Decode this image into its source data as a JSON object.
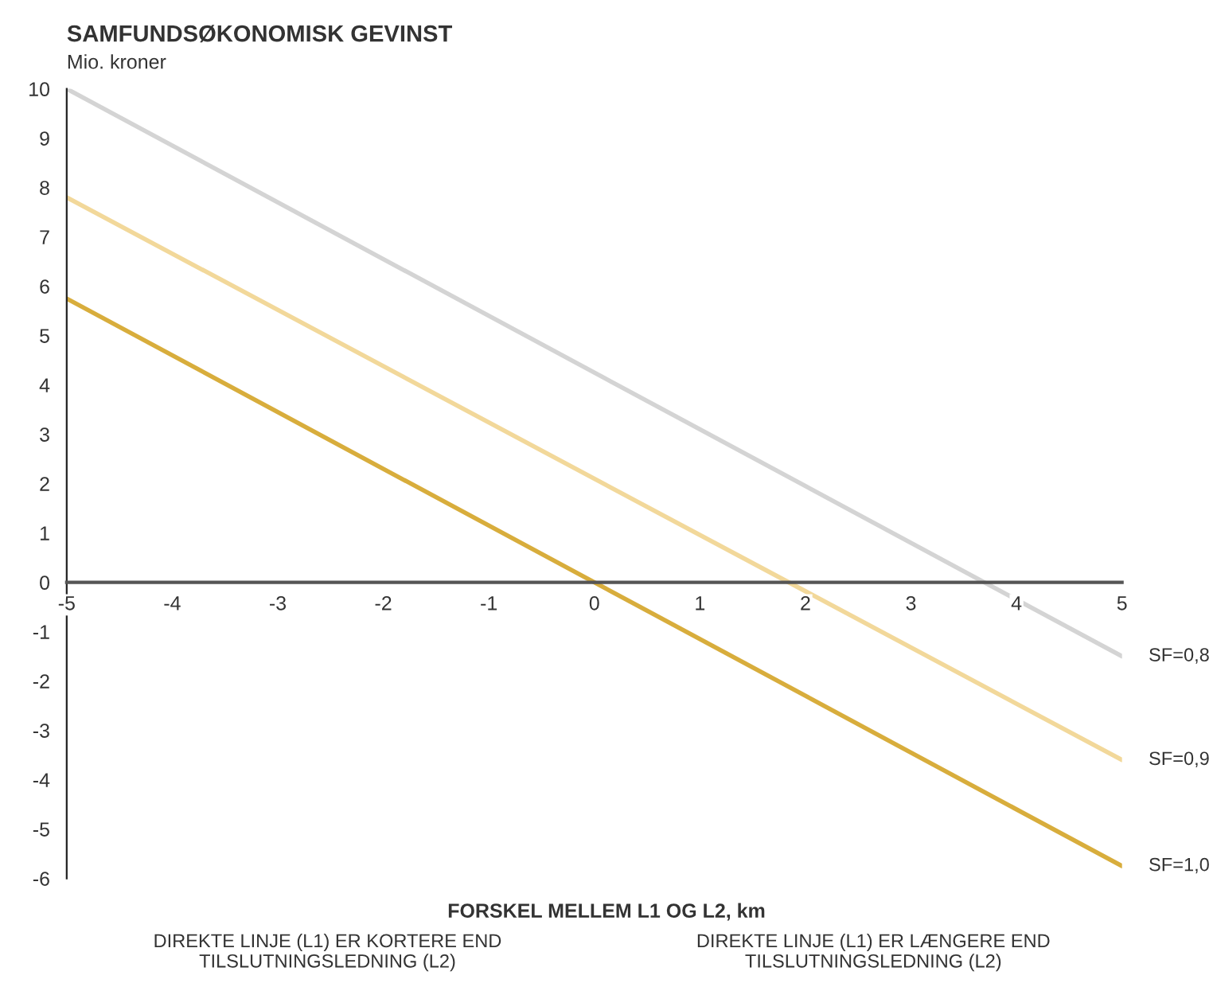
{
  "chart_data": {
    "type": "line",
    "title": "SAMFUNDSØKONOMISK GEVINST",
    "subtitle": "Mio. kroner",
    "xlabel": "FORSKEL MELLEM L1 OG L2, km",
    "x": [
      -5,
      5
    ],
    "series": [
      {
        "name": "SF=0,8",
        "color": "#d4d4d4",
        "values": [
          10,
          -1.5
        ]
      },
      {
        "name": "SF=0,9",
        "color": "#f2d89a",
        "values": [
          7.8,
          -3.6
        ]
      },
      {
        "name": "SF=1,0",
        "color": "#d8ad3c",
        "values": [
          5.75,
          -5.75
        ]
      }
    ],
    "xlim": [
      -5,
      5
    ],
    "xticks": [
      -5,
      -4,
      -3,
      -2,
      -1,
      0,
      1,
      2,
      3,
      4,
      5
    ],
    "ylim": [
      -6,
      10
    ],
    "yticks": [
      -6,
      -5,
      -4,
      -3,
      -2,
      -1,
      0,
      1,
      2,
      3,
      4,
      5,
      6,
      7,
      8,
      9,
      10
    ],
    "grid": false,
    "legend": false,
    "marker": "none",
    "line_style": "solid",
    "annotations": [
      "DIREKTE LINJE (L1) ER KORTERE END\nTILSLUTNINGSLEDNING (L2)",
      "DIREKTE LINJE (L1) ER LÆNGERE END\nTILSLUTNINGSLEDNING (L2)"
    ]
  }
}
